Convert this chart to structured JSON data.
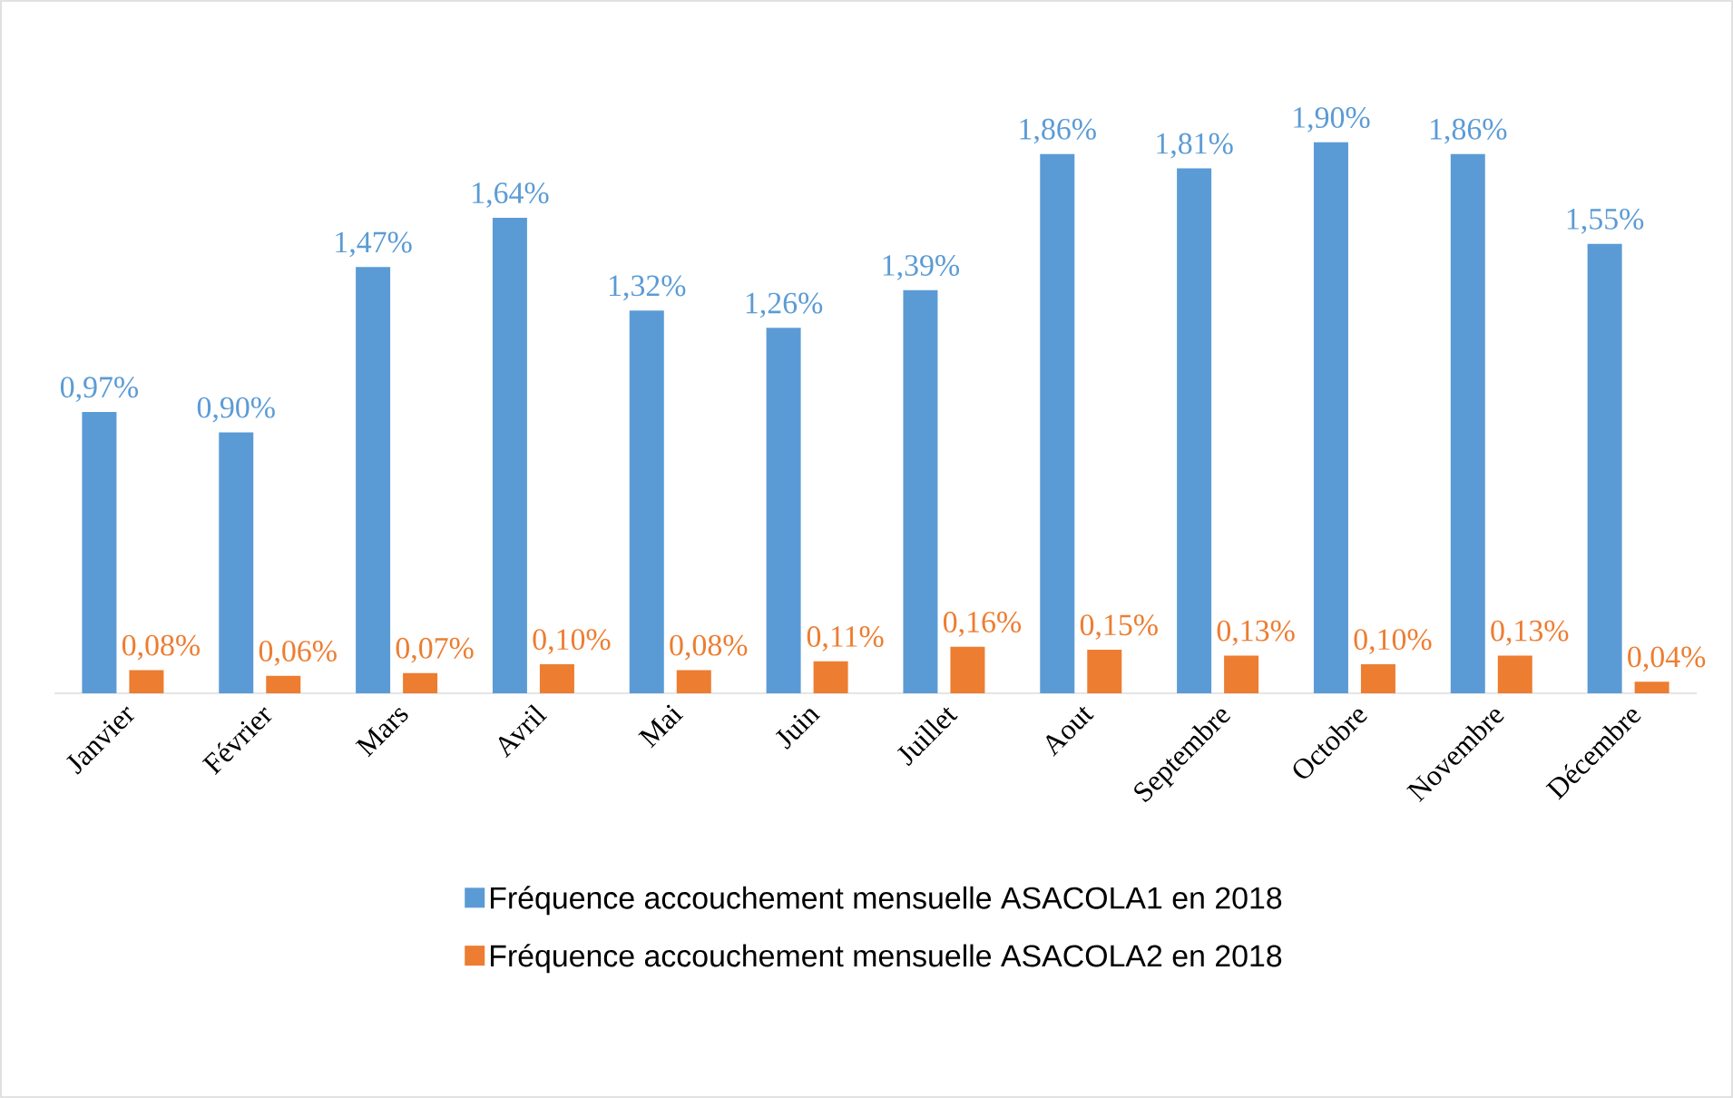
{
  "chart_data": {
    "type": "bar",
    "categories": [
      "Janvier",
      "Février",
      "Mars",
      "Avril",
      "Mai",
      "Juin",
      "Juillet",
      "Aout",
      "Septembre",
      "Octobre",
      "Novembre",
      "Décembre"
    ],
    "series": [
      {
        "name": "Fréquence accouchement mensuelle ASACOLA1 en 2018",
        "color": "#5b9bd5",
        "values": [
          0.97,
          0.9,
          1.47,
          1.64,
          1.32,
          1.26,
          1.39,
          1.86,
          1.81,
          1.9,
          1.86,
          1.55
        ],
        "value_labels": [
          "0,97%",
          "0,90%",
          "1,47%",
          "1,64%",
          "1,32%",
          "1,26%",
          "1,39%",
          "1,86%",
          "1,81%",
          "1,90%",
          "1,86%",
          "1,55%"
        ]
      },
      {
        "name": "Fréquence accouchement mensuelle ASACOLA2 en 2018",
        "color": "#ed7d31",
        "values": [
          0.08,
          0.06,
          0.07,
          0.1,
          0.08,
          0.11,
          0.16,
          0.15,
          0.13,
          0.1,
          0.13,
          0.04
        ],
        "value_labels": [
          "0,08%",
          "0,06%",
          "0,07%",
          "0,10%",
          "0,08%",
          "0,11%",
          "0,16%",
          "0,15%",
          "0,13%",
          "0,10%",
          "0,13%",
          "0,04%"
        ]
      }
    ],
    "legend": "bottom"
  }
}
